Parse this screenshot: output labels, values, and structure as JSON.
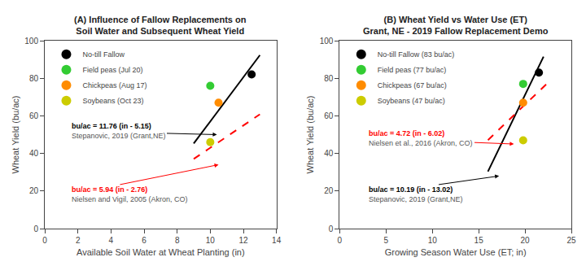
{
  "chart_data": [
    {
      "type": "scatter",
      "title": "(A) Influence of Fallow Replacements on\nSoil Water and Subsequent Wheat Yield",
      "x_label": "Available Soil Water at Wheat Planting (in)",
      "y_label": "Wheat Yield (bu/ac)",
      "xlim": [
        0,
        14
      ],
      "ylim": [
        0,
        100
      ],
      "xticks": [
        0,
        2,
        4,
        6,
        8,
        10,
        12,
        14
      ],
      "yticks": [
        0,
        20,
        40,
        60,
        80,
        100
      ],
      "grid": false,
      "legend": "upper left",
      "series": [
        {
          "type": "line",
          "color": "#000000",
          "line_style": "solid",
          "x": [
            9.0,
            13.0
          ],
          "values": [
            45.276,
            92.316
          ]
        },
        {
          "type": "line",
          "color": "#FF0000",
          "line_style": "dashed",
          "x": [
            9.0,
            13.0
          ],
          "values": [
            37.0656,
            60.8256
          ]
        },
        {
          "type": "scatter",
          "name": "No-till Fallow",
          "color": "#000000",
          "x": [
            12.5
          ],
          "values": [
            82
          ]
        },
        {
          "type": "scatter",
          "name": "Field peas (Jul 20)",
          "color": "#33CC33",
          "x": [
            10.0
          ],
          "values": [
            76
          ]
        },
        {
          "type": "scatter",
          "name": "Chickpeas (Aug 17)",
          "color": "#FF8C00",
          "x": [
            10.5
          ],
          "values": [
            67
          ]
        },
        {
          "type": "scatter",
          "name": "Soybeans (Oct 23)",
          "color": "#CCCC00",
          "x": [
            10.0
          ],
          "values": [
            46
          ]
        }
      ],
      "annotations": [
        {
          "text": "bu/ac = 11.76 (in - 5.15)",
          "note": "Stepanovic, 2019 (Grant,NE)",
          "color": "#000000",
          "x": 1.5,
          "y": 52,
          "arrow_x": 10.4,
          "arrow_y": 50
        },
        {
          "text": "bu/ac = 5.94 (in - 2.76)",
          "note": "Nielsen and Vigil, 2005 (Akron, CO)",
          "color": "#FF0000",
          "x": 1.5,
          "y": 18,
          "arrow_x": 10.5,
          "arrow_y": 34
        }
      ]
    },
    {
      "type": "scatter",
      "title": "(B) Wheat Yield vs Water Use (ET)\nGrant, NE - 2019 Fallow Replacement Demo",
      "x_label": "Growing Season Water Use (ET; in)",
      "y_label": "Wheat Yield (bu/ac)",
      "xlim": [
        0,
        25
      ],
      "ylim": [
        0,
        100
      ],
      "xticks": [
        0,
        5,
        10,
        15,
        20,
        25
      ],
      "yticks": [
        0,
        20,
        40,
        60,
        80,
        100
      ],
      "grid": false,
      "legend": "upper left",
      "series": [
        {
          "type": "line",
          "color": "#000000",
          "line_style": "solid",
          "x": [
            16.0,
            22.0
          ],
          "values": [
            30.3662,
            91.5062
          ]
        },
        {
          "type": "line",
          "color": "#FF0000",
          "line_style": "dashed",
          "x": [
            16.0,
            22.5
          ],
          "values": [
            47.1056,
            77.7856
          ]
        },
        {
          "type": "scatter",
          "name": "No-till Fallow (83 bu/ac)",
          "color": "#000000",
          "x": [
            21.5
          ],
          "values": [
            83
          ]
        },
        {
          "type": "scatter",
          "name": "Field peas (77 bu/ac)",
          "color": "#33CC33",
          "x": [
            19.8
          ],
          "values": [
            77
          ]
        },
        {
          "type": "scatter",
          "name": "Chickpeas (67 bu/ac)",
          "color": "#FF8C00",
          "x": [
            19.8
          ],
          "values": [
            67
          ]
        },
        {
          "type": "scatter",
          "name": "Soybeans (47 bu/ac)",
          "color": "#CCCC00",
          "x": [
            19.8
          ],
          "values": [
            47
          ]
        }
      ],
      "annotations": [
        {
          "text": "bu/ac = 4.72 (in - 6.02)",
          "note": "Nielsen et al., 2016 (Akron, CO)",
          "color": "#FF0000",
          "x": 3.0,
          "y": 48,
          "arrow_x": 18.8,
          "arrow_y": 45
        },
        {
          "text": "bu/ac = 10.19 (in - 13.02)",
          "note": "Stepanovic, 2019 (Grant,NE)",
          "color": "#000000",
          "x": 3.0,
          "y": 18,
          "arrow_x": 17.2,
          "arrow_y": 28
        }
      ]
    }
  ]
}
